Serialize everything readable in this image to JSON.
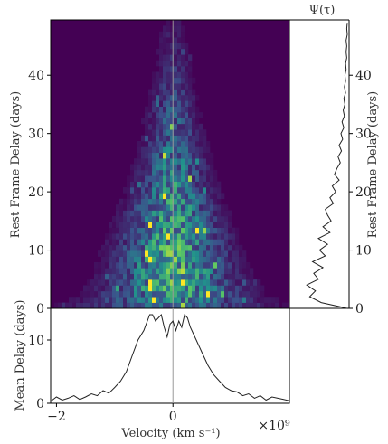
{
  "chart_data": [
    {
      "type": "heatmap",
      "ylabel": "Rest Frame Delay (days)",
      "xlim": [
        -2.1,
        2.0
      ],
      "ylim": [
        0,
        49.5
      ],
      "yticks": [
        0,
        10,
        20,
        30,
        40
      ],
      "colormap": "viridis",
      "grid": false,
      "profile": [
        {
          "delay": 0,
          "width": 1.55,
          "amp": 0.25
        },
        {
          "delay": 2,
          "width": 1.05,
          "amp": 0.5
        },
        {
          "delay": 6,
          "width": 0.85,
          "amp": 0.6
        },
        {
          "delay": 12,
          "width": 0.75,
          "amp": 0.55
        },
        {
          "delay": 20,
          "width": 0.55,
          "amp": 0.45
        },
        {
          "delay": 30,
          "width": 0.4,
          "amp": 0.3
        },
        {
          "delay": 40,
          "width": 0.3,
          "amp": 0.15
        },
        {
          "delay": 49,
          "width": 0.25,
          "amp": 0.06
        }
      ]
    },
    {
      "type": "line",
      "title": "Ψ(τ)",
      "ylabel": "Rest Frame Delay (days)",
      "ylim": [
        0,
        49.5
      ],
      "yticks": [
        0,
        10,
        20,
        30,
        40
      ],
      "series": [
        {
          "y": [
            0,
            1,
            2,
            3,
            4,
            5,
            6,
            7,
            8,
            9,
            10,
            11,
            12,
            13,
            14,
            15,
            16,
            17,
            18,
            19,
            20,
            21,
            22,
            23,
            24,
            25,
            26,
            27,
            28,
            29,
            30,
            31,
            32,
            33,
            34,
            35,
            36,
            37,
            38,
            39,
            40,
            41,
            42,
            43,
            44,
            45,
            46,
            47,
            48,
            49
          ],
          "x": [
            1.0,
            0.55,
            0.35,
            0.45,
            0.3,
            0.5,
            0.42,
            0.58,
            0.4,
            0.62,
            0.52,
            0.66,
            0.5,
            0.7,
            0.58,
            0.72,
            0.66,
            0.62,
            0.76,
            0.7,
            0.8,
            0.74,
            0.86,
            0.78,
            0.82,
            0.88,
            0.84,
            0.9,
            0.86,
            0.92,
            0.89,
            0.94,
            0.91,
            0.95,
            0.93,
            0.96,
            0.94,
            0.97,
            0.95,
            0.97,
            0.96,
            0.98,
            0.97,
            0.99,
            0.98,
            0.99,
            0.98,
            1.0,
            0.99,
            1.0
          ]
        }
      ]
    },
    {
      "type": "line",
      "xlabel": "Velocity (km s⁻¹)",
      "ylabel": "Mean Delay (days)",
      "x_multiplier": "×10⁹",
      "xlim": [
        -2.1,
        2.0
      ],
      "ylim": [
        0,
        15
      ],
      "xticks": [
        -2,
        0
      ],
      "yticks": [
        0,
        10
      ],
      "series": [
        {
          "x": [
            -2.1,
            -2.0,
            -1.9,
            -1.8,
            -1.7,
            -1.6,
            -1.5,
            -1.4,
            -1.3,
            -1.2,
            -1.1,
            -1.0,
            -0.9,
            -0.8,
            -0.7,
            -0.6,
            -0.5,
            -0.4,
            -0.35,
            -0.3,
            -0.25,
            -0.2,
            -0.15,
            -0.1,
            -0.05,
            0.0,
            0.05,
            0.1,
            0.15,
            0.2,
            0.25,
            0.3,
            0.4,
            0.5,
            0.6,
            0.7,
            0.8,
            0.9,
            1.0,
            1.1,
            1.2,
            1.3,
            1.4,
            1.5,
            1.6,
            1.7,
            1.8,
            1.9,
            2.0
          ],
          "y": [
            0.3,
            1.0,
            0.5,
            0.8,
            1.2,
            0.6,
            1.0,
            1.5,
            1.2,
            2.0,
            1.6,
            2.5,
            3.5,
            5.0,
            7.5,
            10.0,
            11.5,
            14.0,
            14.0,
            13.0,
            13.5,
            14.0,
            12.0,
            10.5,
            12.5,
            13.0,
            11.5,
            13.0,
            12.0,
            14.0,
            13.5,
            12.0,
            10.0,
            8.0,
            6.0,
            4.5,
            3.5,
            2.5,
            2.0,
            1.8,
            1.2,
            1.5,
            0.8,
            1.2,
            0.5,
            1.0,
            0.8,
            0.6,
            0.4
          ]
        }
      ]
    }
  ]
}
